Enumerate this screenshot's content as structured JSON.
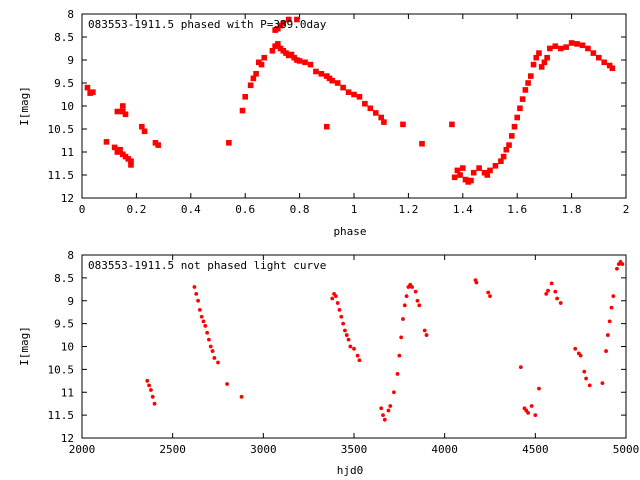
{
  "chart_data": [
    {
      "type": "scatter",
      "title": "083553-1911.5 phased with P=389.0day",
      "xlabel": "phase",
      "ylabel": "I[mag]",
      "xlim": [
        0,
        2
      ],
      "ylim": [
        12,
        8
      ],
      "y_inverted": true,
      "xticks": [
        "0",
        "0.2",
        "0.4",
        "0.6",
        "0.8",
        "1",
        "1.2",
        "1.4",
        "1.6",
        "1.8",
        "2"
      ],
      "yticks": [
        "8",
        "8.5",
        "9",
        "9.5",
        "10",
        "10.5",
        "11",
        "11.5",
        "12"
      ],
      "marker_color": "#ff0000",
      "series": [
        {
          "points": [
            [
              0.02,
              9.6
            ],
            [
              0.03,
              9.72
            ],
            [
              0.04,
              9.7
            ],
            [
              0.09,
              10.78
            ],
            [
              0.12,
              10.9
            ],
            [
              0.13,
              11.0
            ],
            [
              0.14,
              10.95
            ],
            [
              0.15,
              11.05
            ],
            [
              0.16,
              11.1
            ],
            [
              0.17,
              11.15
            ],
            [
              0.18,
              11.2
            ],
            [
              0.18,
              11.28
            ],
            [
              0.13,
              10.12
            ],
            [
              0.15,
              10.12
            ],
            [
              0.15,
              10.0
            ],
            [
              0.16,
              10.18
            ],
            [
              0.22,
              10.45
            ],
            [
              0.23,
              10.55
            ],
            [
              0.27,
              10.8
            ],
            [
              0.28,
              10.85
            ],
            [
              0.54,
              10.8
            ],
            [
              0.59,
              10.1
            ],
            [
              0.6,
              9.8
            ],
            [
              0.62,
              9.55
            ],
            [
              0.63,
              9.4
            ],
            [
              0.64,
              9.3
            ],
            [
              0.65,
              9.05
            ],
            [
              0.66,
              9.1
            ],
            [
              0.67,
              8.95
            ],
            [
              0.7,
              8.8
            ],
            [
              0.71,
              8.7
            ],
            [
              0.72,
              8.65
            ],
            [
              0.73,
              8.75
            ],
            [
              0.74,
              8.8
            ],
            [
              0.75,
              8.85
            ],
            [
              0.76,
              8.9
            ],
            [
              0.77,
              8.88
            ],
            [
              0.78,
              8.95
            ],
            [
              0.79,
              9.0
            ],
            [
              0.8,
              9.02
            ],
            [
              0.82,
              9.05
            ],
            [
              0.84,
              9.1
            ],
            [
              0.71,
              8.35
            ],
            [
              0.72,
              8.32
            ],
            [
              0.73,
              8.25
            ],
            [
              0.74,
              8.2
            ],
            [
              0.76,
              8.12
            ],
            [
              0.79,
              8.12
            ],
            [
              0.86,
              9.25
            ],
            [
              0.88,
              9.3
            ],
            [
              0.9,
              9.35
            ],
            [
              0.91,
              9.4
            ],
            [
              0.92,
              9.45
            ],
            [
              0.94,
              9.5
            ],
            [
              0.96,
              9.6
            ],
            [
              0.98,
              9.7
            ],
            [
              1.0,
              9.75
            ],
            [
              1.02,
              9.8
            ],
            [
              1.04,
              9.95
            ],
            [
              1.06,
              10.05
            ],
            [
              1.08,
              10.15
            ],
            [
              1.1,
              10.25
            ],
            [
              1.11,
              10.35
            ],
            [
              0.9,
              10.45
            ],
            [
              1.18,
              10.4
            ],
            [
              1.25,
              10.82
            ],
            [
              1.36,
              10.4
            ],
            [
              1.37,
              11.55
            ],
            [
              1.38,
              11.4
            ],
            [
              1.39,
              11.5
            ],
            [
              1.4,
              11.35
            ],
            [
              1.41,
              11.6
            ],
            [
              1.42,
              11.65
            ],
            [
              1.43,
              11.62
            ],
            [
              1.44,
              11.45
            ],
            [
              1.46,
              11.35
            ],
            [
              1.48,
              11.45
            ],
            [
              1.49,
              11.5
            ],
            [
              1.5,
              11.4
            ],
            [
              1.52,
              11.3
            ],
            [
              1.54,
              11.2
            ],
            [
              1.55,
              11.1
            ],
            [
              1.56,
              10.95
            ],
            [
              1.57,
              10.85
            ],
            [
              1.58,
              10.65
            ],
            [
              1.59,
              10.45
            ],
            [
              1.6,
              10.25
            ],
            [
              1.61,
              10.05
            ],
            [
              1.62,
              9.85
            ],
            [
              1.63,
              9.65
            ],
            [
              1.64,
              9.5
            ],
            [
              1.65,
              9.35
            ],
            [
              1.66,
              9.1
            ],
            [
              1.67,
              8.95
            ],
            [
              1.68,
              8.85
            ],
            [
              1.69,
              9.15
            ],
            [
              1.7,
              9.05
            ],
            [
              1.71,
              8.95
            ],
            [
              1.72,
              8.75
            ],
            [
              1.74,
              8.7
            ],
            [
              1.76,
              8.75
            ],
            [
              1.78,
              8.72
            ],
            [
              1.8,
              8.63
            ],
            [
              1.82,
              8.65
            ],
            [
              1.84,
              8.68
            ],
            [
              1.86,
              8.75
            ],
            [
              1.88,
              8.85
            ],
            [
              1.9,
              8.95
            ],
            [
              1.92,
              9.05
            ],
            [
              1.94,
              9.12
            ],
            [
              1.95,
              9.18
            ]
          ]
        }
      ]
    },
    {
      "type": "scatter",
      "title": "083553-1911.5 not phased light curve",
      "xlabel": "hjd0",
      "ylabel": "I[mag]",
      "xlim": [
        2000,
        5000
      ],
      "ylim": [
        12,
        8
      ],
      "y_inverted": true,
      "xticks": [
        "2000",
        "2500",
        "3000",
        "3500",
        "4000",
        "4500",
        "5000"
      ],
      "yticks": [
        "8",
        "8.5",
        "9",
        "9.5",
        "10",
        "10.5",
        "11",
        "11.5",
        "12"
      ],
      "marker_color": "#ff0000",
      "series": [
        {
          "points": [
            [
              2360,
              10.75
            ],
            [
              2370,
              10.85
            ],
            [
              2380,
              10.95
            ],
            [
              2390,
              11.1
            ],
            [
              2400,
              11.25
            ],
            [
              2620,
              8.7
            ],
            [
              2630,
              8.85
            ],
            [
              2640,
              9.0
            ],
            [
              2650,
              9.2
            ],
            [
              2660,
              9.35
            ],
            [
              2670,
              9.45
            ],
            [
              2680,
              9.55
            ],
            [
              2690,
              9.7
            ],
            [
              2700,
              9.85
            ],
            [
              2710,
              10.0
            ],
            [
              2720,
              10.1
            ],
            [
              2730,
              10.25
            ],
            [
              2750,
              10.35
            ],
            [
              2800,
              10.82
            ],
            [
              2880,
              11.1
            ],
            [
              3380,
              8.95
            ],
            [
              3390,
              8.85
            ],
            [
              3400,
              8.9
            ],
            [
              3410,
              9.05
            ],
            [
              3420,
              9.2
            ],
            [
              3430,
              9.35
            ],
            [
              3440,
              9.5
            ],
            [
              3450,
              9.65
            ],
            [
              3460,
              9.75
            ],
            [
              3470,
              9.85
            ],
            [
              3480,
              10.0
            ],
            [
              3500,
              10.05
            ],
            [
              3520,
              10.2
            ],
            [
              3530,
              10.3
            ],
            [
              3650,
              11.35
            ],
            [
              3660,
              11.5
            ],
            [
              3670,
              11.6
            ],
            [
              3690,
              11.4
            ],
            [
              3700,
              11.3
            ],
            [
              3720,
              11.0
            ],
            [
              3740,
              10.6
            ],
            [
              3750,
              10.2
            ],
            [
              3760,
              9.8
            ],
            [
              3770,
              9.4
            ],
            [
              3780,
              9.1
            ],
            [
              3790,
              8.9
            ],
            [
              3800,
              8.7
            ],
            [
              3810,
              8.65
            ],
            [
              3820,
              8.7
            ],
            [
              3840,
              8.8
            ],
            [
              3850,
              9.0
            ],
            [
              3860,
              9.1
            ],
            [
              3890,
              9.65
            ],
            [
              3900,
              9.75
            ],
            [
              4170,
              8.55
            ],
            [
              4175,
              8.6
            ],
            [
              4240,
              8.82
            ],
            [
              4250,
              8.9
            ],
            [
              4420,
              10.45
            ],
            [
              4440,
              11.35
            ],
            [
              4450,
              11.4
            ],
            [
              4460,
              11.45
            ],
            [
              4480,
              11.3
            ],
            [
              4500,
              11.5
            ],
            [
              4520,
              10.92
            ],
            [
              4560,
              8.85
            ],
            [
              4570,
              8.78
            ],
            [
              4590,
              8.62
            ],
            [
              4610,
              8.8
            ],
            [
              4620,
              8.95
            ],
            [
              4640,
              9.05
            ],
            [
              4720,
              10.05
            ],
            [
              4740,
              10.15
            ],
            [
              4750,
              10.2
            ],
            [
              4770,
              10.55
            ],
            [
              4780,
              10.7
            ],
            [
              4800,
              10.85
            ],
            [
              4870,
              10.8
            ],
            [
              4890,
              10.1
            ],
            [
              4900,
              9.75
            ],
            [
              4910,
              9.45
            ],
            [
              4920,
              9.15
            ],
            [
              4930,
              8.9
            ],
            [
              4950,
              8.3
            ],
            [
              4960,
              8.2
            ],
            [
              4970,
              8.15
            ],
            [
              4980,
              8.2
            ]
          ]
        }
      ]
    }
  ]
}
